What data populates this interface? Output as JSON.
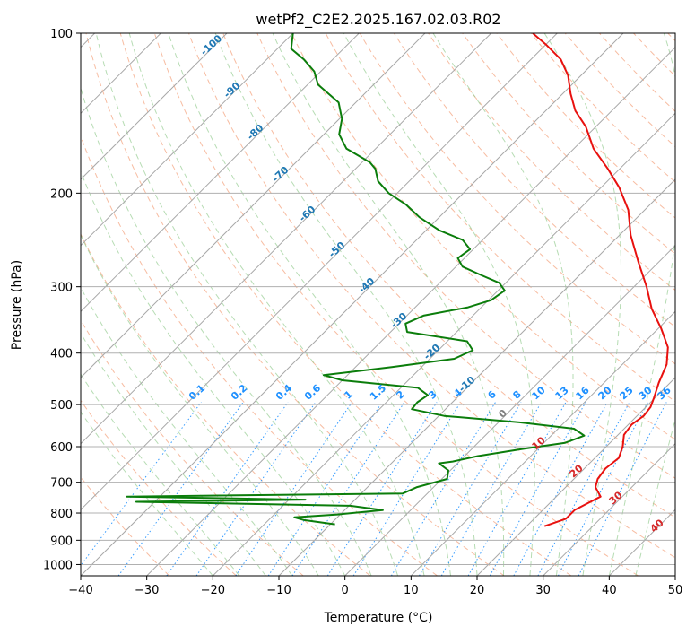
{
  "chart_data": {
    "type": "line",
    "subtype": "skew-T log-P diagram",
    "title": "wetPf2_C2E2.2025.167.02.03.R02",
    "xlabel": "Temperature (°C)",
    "ylabel": "Pressure (hPa)",
    "xlim": [
      -40,
      50
    ],
    "ylim": [
      1050,
      100
    ],
    "y_scale": "log",
    "x_ticks": [
      -40,
      -30,
      -20,
      -10,
      0,
      10,
      20,
      30,
      40,
      50
    ],
    "y_ticks": [
      100,
      200,
      300,
      400,
      500,
      600,
      700,
      800,
      900,
      1000
    ],
    "grid": true,
    "series": [
      {
        "color": "#e8110f",
        "points": [
          [
            847,
            22.7
          ],
          [
            820,
            24.8
          ],
          [
            790,
            24.8
          ],
          [
            770,
            25.6
          ],
          [
            745,
            26.7
          ],
          [
            715,
            24.5
          ],
          [
            690,
            23.6
          ],
          [
            660,
            23.2
          ],
          [
            630,
            23.6
          ],
          [
            600,
            22.5
          ],
          [
            570,
            20.9
          ],
          [
            545,
            20.5
          ],
          [
            525,
            21.0
          ],
          [
            505,
            20.7
          ],
          [
            485,
            19.8
          ],
          [
            455,
            18.3
          ],
          [
            420,
            16.7
          ],
          [
            390,
            14.3
          ],
          [
            360,
            10.5
          ],
          [
            330,
            6.0
          ],
          [
            300,
            1.9
          ],
          [
            270,
            -3.0
          ],
          [
            240,
            -8.3
          ],
          [
            215,
            -12.5
          ],
          [
            195,
            -17.3
          ],
          [
            180,
            -21.8
          ],
          [
            165,
            -27.0
          ],
          [
            150,
            -31.5
          ],
          [
            140,
            -35.5
          ],
          [
            130,
            -38.8
          ],
          [
            120,
            -42.0
          ],
          [
            112,
            -45.5
          ],
          [
            105,
            -50.0
          ],
          [
            100,
            -53.7
          ]
        ]
      },
      {
        "color": "#0b7d0b",
        "points": [
          [
            840,
            -9.3
          ],
          [
            825,
            -14.6
          ],
          [
            815,
            -16.5
          ],
          [
            805,
            -10.4
          ],
          [
            790,
            -4.2
          ],
          [
            775,
            -9.8
          ],
          [
            762,
            -42.8
          ],
          [
            755,
            -17.5
          ],
          [
            745,
            -45.0
          ],
          [
            735,
            -3.7
          ],
          [
            715,
            -2.5
          ],
          [
            690,
            0.8
          ],
          [
            665,
            -0.3
          ],
          [
            645,
            -2.8
          ],
          [
            640,
            -1.0
          ],
          [
            625,
            2.0
          ],
          [
            605,
            8.0
          ],
          [
            590,
            13.2
          ],
          [
            572,
            15.0
          ],
          [
            555,
            12.4
          ],
          [
            540,
            3.2
          ],
          [
            525,
            -9.2
          ],
          [
            510,
            -15.1
          ],
          [
            495,
            -15.3
          ],
          [
            480,
            -14.8
          ],
          [
            465,
            -17.4
          ],
          [
            450,
            -30.0
          ],
          [
            440,
            -33.6
          ],
          [
            425,
            -24.5
          ],
          [
            410,
            -16.3
          ],
          [
            395,
            -14.8
          ],
          [
            380,
            -17.0
          ],
          [
            365,
            -27.5
          ],
          [
            352,
            -29.0
          ],
          [
            340,
            -27.5
          ],
          [
            328,
            -22.0
          ],
          [
            318,
            -19.6
          ],
          [
            305,
            -19.0
          ],
          [
            295,
            -21.0
          ],
          [
            285,
            -25.0
          ],
          [
            275,
            -29.0
          ],
          [
            265,
            -31.0
          ],
          [
            255,
            -30.5
          ],
          [
            245,
            -33.0
          ],
          [
            235,
            -38.0
          ],
          [
            222,
            -43.0
          ],
          [
            210,
            -47.0
          ],
          [
            200,
            -51.3
          ],
          [
            190,
            -54.7
          ],
          [
            180,
            -57.0
          ],
          [
            175,
            -58.8
          ],
          [
            165,
            -64.4
          ],
          [
            155,
            -67.7
          ],
          [
            145,
            -69.6
          ],
          [
            135,
            -72.6
          ],
          [
            125,
            -78.4
          ],
          [
            118,
            -81.0
          ],
          [
            112,
            -84.4
          ],
          [
            107,
            -87.9
          ],
          [
            100,
            -90.0
          ]
        ]
      }
    ],
    "isotherm_labels": {
      "color": "#1f78b4",
      "values": [
        "-100",
        "-90",
        "-80",
        "-70",
        "-60",
        "-50",
        "-40",
        "-30",
        "-20",
        "-10"
      ]
    },
    "mixing_ratio_labels": {
      "color": "#1e90ff",
      "values": [
        "0.1",
        "0.2",
        "0.4",
        "0.6",
        "1",
        "1.5",
        "2",
        "3",
        "4",
        "6",
        "8",
        "10",
        "13",
        "16",
        "20",
        "25",
        "30",
        "36"
      ]
    },
    "positive_isotherm_labels": {
      "zero_color": "#7f7f7f",
      "color": "#d62728",
      "values": [
        "0",
        "10",
        "20",
        "30",
        "40"
      ]
    }
  }
}
